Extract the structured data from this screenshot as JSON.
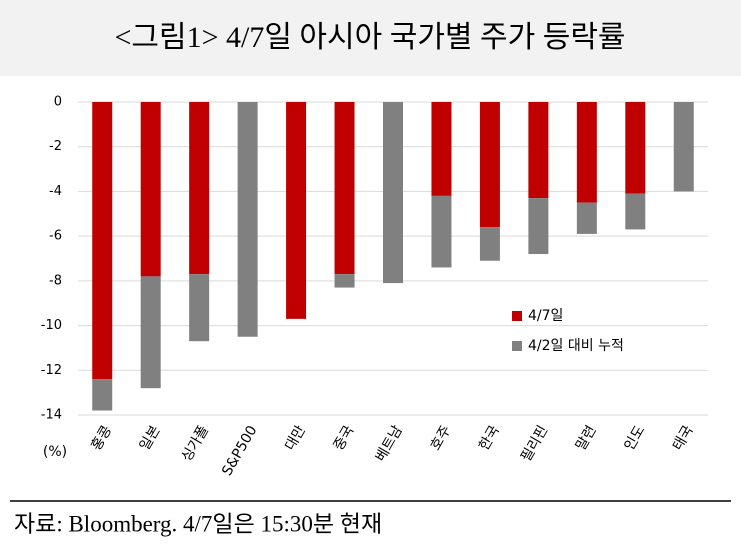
{
  "chart_data": {
    "type": "stacked_bar",
    "title": "<그림1> 4/7일 아시아 국가별 주가 등락률",
    "y_unit": "(%)",
    "source": "자료: Bloomberg. 4/7일은 15:30분 현재",
    "categories": [
      "홍콩",
      "일본",
      "싱가폴",
      "S&P500",
      "대만",
      "중국",
      "베트남",
      "호주",
      "한국",
      "필리핀",
      "말련",
      "인도",
      "태국"
    ],
    "series": [
      {
        "name": "4/7일",
        "color": "#c00000",
        "values": [
          -12.4,
          -7.8,
          -7.7,
          0,
          -9.7,
          -7.7,
          0,
          -4.2,
          -5.6,
          -4.3,
          -4.5,
          -4.1,
          0
        ]
      },
      {
        "name": "4/2일 대비 누적",
        "color": "#808080",
        "values": [
          -1.4,
          -5.0,
          -3.0,
          -10.5,
          0,
          -0.6,
          -8.1,
          -3.2,
          -1.5,
          -2.5,
          -1.4,
          -1.6,
          -4.0
        ]
      }
    ],
    "ylim": [
      -14,
      0
    ],
    "yticks": [
      0,
      -2,
      -4,
      -6,
      -8,
      -10,
      -12,
      -14
    ],
    "grid": true
  }
}
